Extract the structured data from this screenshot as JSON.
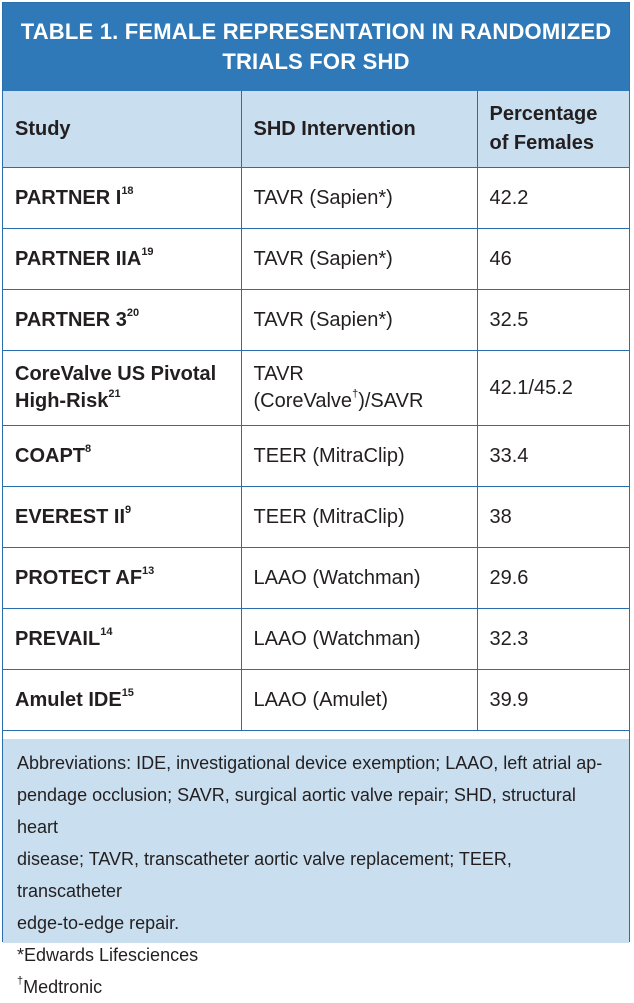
{
  "title": {
    "line1": "TABLE 1.  FEMALE REPRESENTATION IN RANDOMIZED",
    "line2": "TRIALS FOR SHD"
  },
  "columns": [
    "Study",
    "SHD Intervention",
    "Percentage of Females"
  ],
  "rows": [
    {
      "study": "PARTNER I",
      "ref": "18",
      "intervention": "TAVR (Sapien*)",
      "percent": "42.2"
    },
    {
      "study": "PARTNER IIA",
      "ref": "19",
      "intervention": "TAVR (Sapien*)",
      "percent": "46"
    },
    {
      "study": "PARTNER 3",
      "ref": "20",
      "intervention": "TAVR (Sapien*)",
      "percent": "32.5"
    },
    {
      "study_line1": "CoreValve US Pivotal",
      "study_line2": "High-Risk",
      "ref": "21",
      "intervention_pre": "TAVR (CoreValve",
      "intervention_sup": "†",
      "intervention_post": ")/SAVR",
      "percent": "42.1/45.2"
    },
    {
      "study": "COAPT",
      "ref": "8",
      "intervention": "TEER (MitraClip)",
      "percent": "33.4"
    },
    {
      "study": "EVEREST II",
      "ref": "9",
      "intervention": "TEER (MitraClip)",
      "percent": "38"
    },
    {
      "study": "PROTECT AF",
      "ref": "13",
      "intervention": "LAAO (Watchman)",
      "percent": "29.6"
    },
    {
      "study": "PREVAIL",
      "ref": "14",
      "intervention": "LAAO (Watchman)",
      "percent": "32.3"
    },
    {
      "study": "Amulet IDE",
      "ref": "15",
      "intervention": "LAAO (Amulet)",
      "percent": "39.9"
    }
  ],
  "footnotes": {
    "abbreviations": "Abbreviations: IDE, investigational device exemption; LAAO, left atrial ap-pendage occlusion; SAVR, surgical aortic valve repair; SHD, structural heart disease; TAVR, transcatheter aortic valve replacement; TEER, transcatheter edge-to-edge repair.",
    "abbreviations_lines": [
      "Abbreviations: IDE, investigational device exemption; LAAO, left atrial ap-",
      "pendage occlusion; SAVR, surgical aortic valve repair; SHD, structural heart",
      "disease; TAVR, transcatheter aortic valve replacement; TEER, transcatheter",
      "edge-to-edge repair."
    ],
    "star": "*Edwards Lifesciences",
    "dagger_mark": "†",
    "dagger": "Medtronic"
  },
  "colors": {
    "title_bg": "#2f79b8",
    "header_bg": "#c9deef",
    "border": "#2a6fad",
    "text": "#231f20"
  }
}
